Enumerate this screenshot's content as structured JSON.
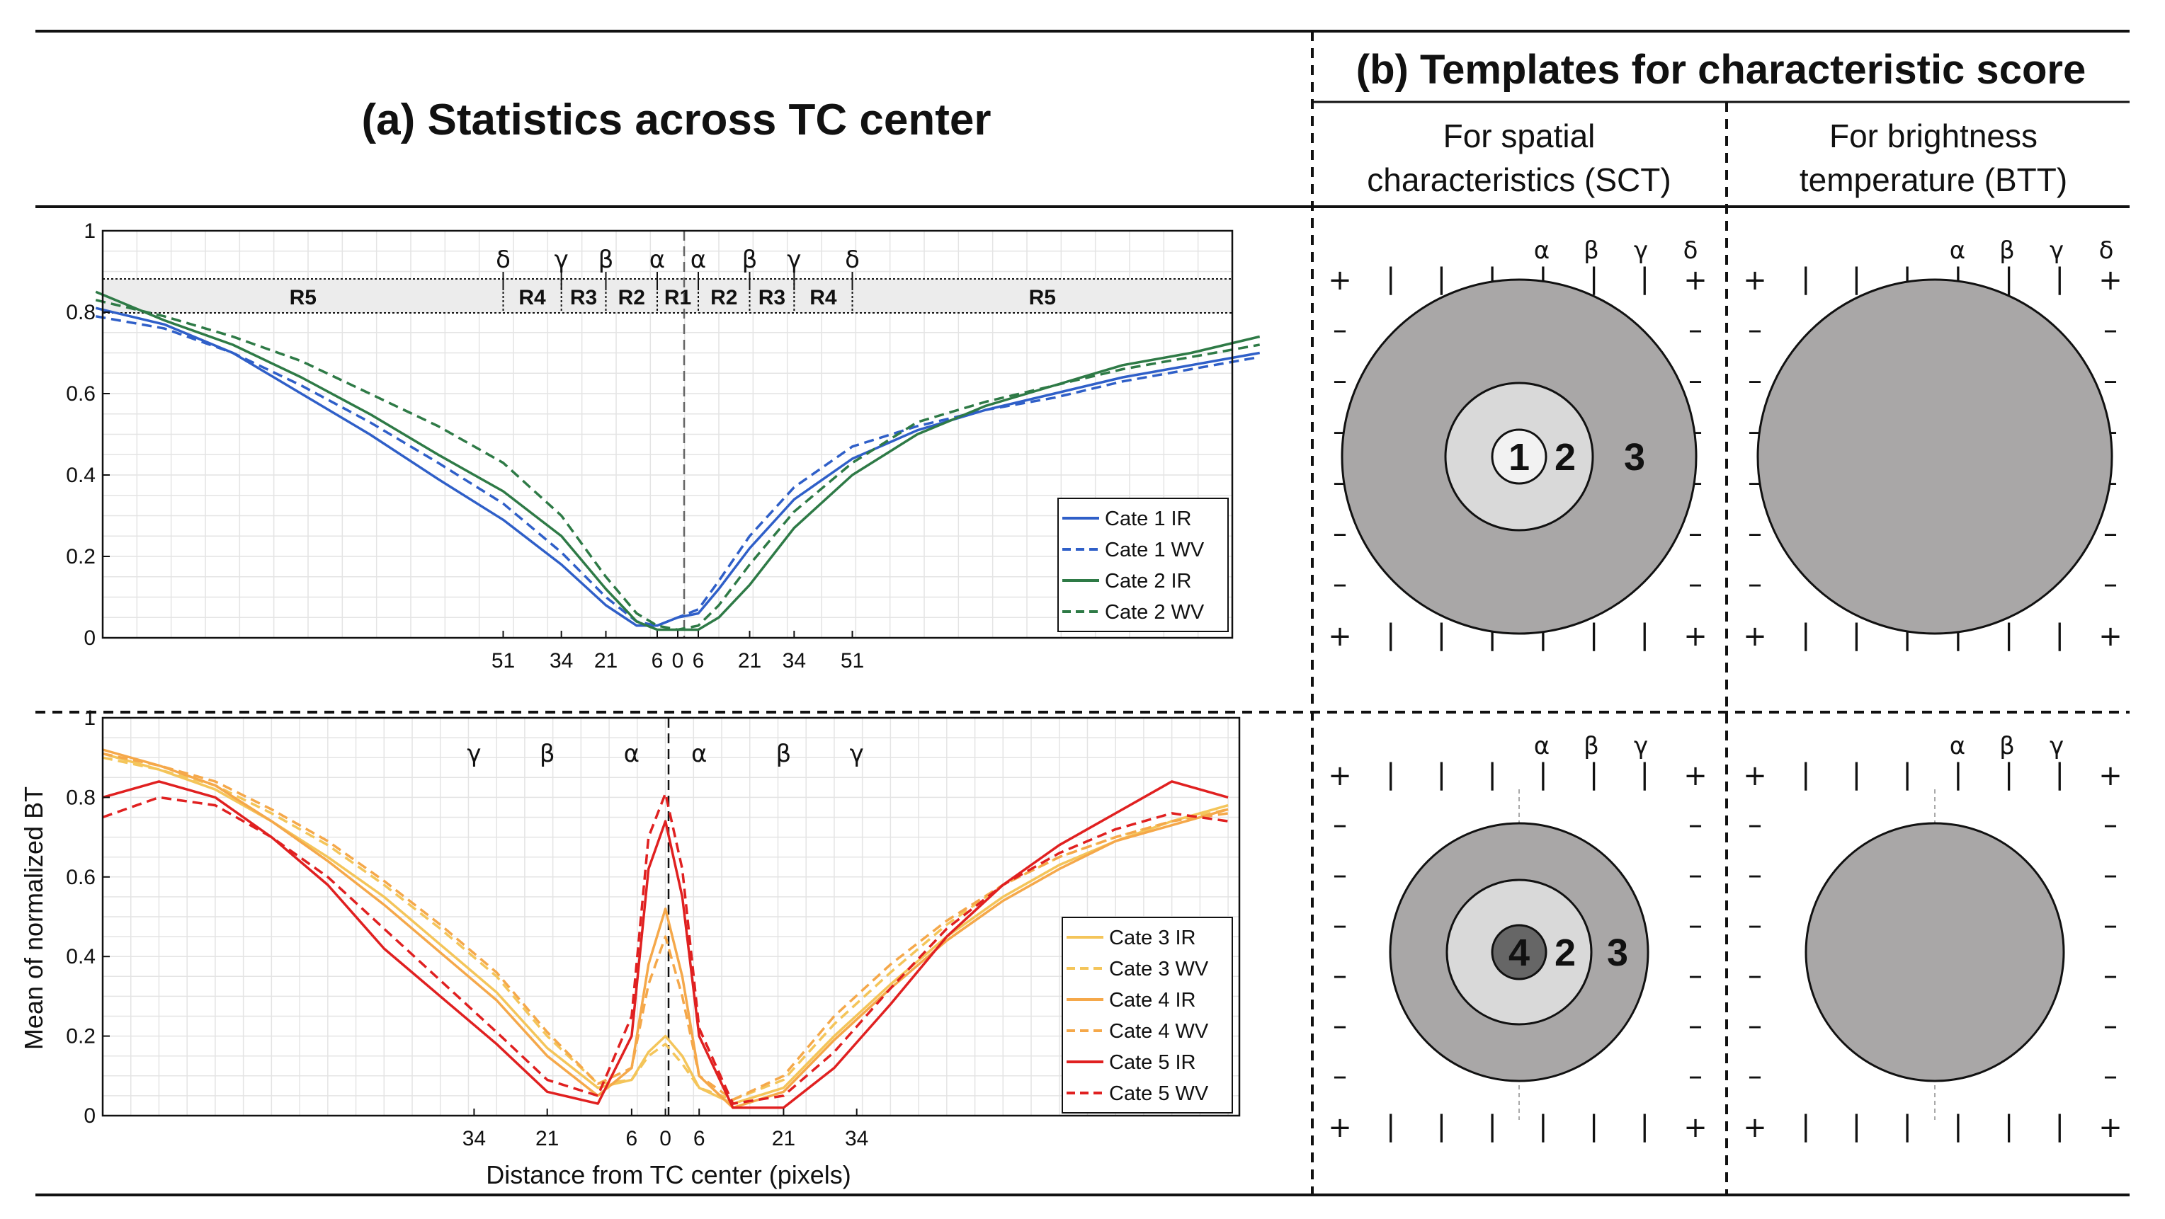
{
  "panel_a": {
    "title": "(a) Statistics across TC center"
  },
  "panel_b": {
    "title": "(b) Templates for characteristic score",
    "col1": {
      "line1": "For spatial",
      "line2": "characteristics (SCT)"
    },
    "col2": {
      "line1": "For brightness",
      "line2": "temperature (BTT)"
    }
  },
  "template_labels": {
    "top_sct": [
      "1",
      "2",
      "3"
    ],
    "bottom_sct": [
      "4",
      "2",
      "3"
    ],
    "greek_top": [
      "α",
      "β",
      "γ",
      "δ"
    ],
    "greek_bottom": [
      "α",
      "β",
      "γ"
    ],
    "plus": "+",
    "minus": "–",
    "bar": "|"
  },
  "chart_data": [
    {
      "type": "line",
      "title": "",
      "xlabel": "",
      "ylabel": "",
      "ylim": [
        0,
        1
      ],
      "yticks": [
        "0",
        "0.2",
        "0.4",
        "0.6",
        "0.8",
        "1"
      ],
      "xticks": [
        "51",
        "34",
        "21",
        "6",
        "0",
        "6",
        "21",
        "34",
        "51"
      ],
      "region_labels": [
        "R5",
        "R4",
        "R3",
        "R2",
        "R1",
        "R2",
        "R3",
        "R4",
        "R5"
      ],
      "greek_labels": [
        "δ",
        "γ",
        "β",
        "α",
        "α",
        "β",
        "γ",
        "δ"
      ],
      "legend_position": "bottom-right",
      "x": [
        -170,
        -150,
        -130,
        -110,
        -90,
        -70,
        -51,
        -34,
        -21,
        -12,
        -6,
        0,
        6,
        12,
        21,
        34,
        51,
        70,
        90,
        110,
        130,
        150,
        170
      ],
      "series": [
        {
          "name": "Cate 1 IR",
          "color": "#2f5fc8",
          "dash": false,
          "values": [
            0.81,
            0.77,
            0.7,
            0.6,
            0.5,
            0.39,
            0.29,
            0.18,
            0.08,
            0.03,
            0.03,
            0.05,
            0.06,
            0.12,
            0.22,
            0.34,
            0.44,
            0.51,
            0.56,
            0.6,
            0.64,
            0.67,
            0.7
          ]
        },
        {
          "name": "Cate 1 WV",
          "color": "#2f5fc8",
          "dash": true,
          "values": [
            0.79,
            0.76,
            0.7,
            0.62,
            0.53,
            0.43,
            0.33,
            0.21,
            0.1,
            0.04,
            0.03,
            0.05,
            0.07,
            0.14,
            0.25,
            0.37,
            0.47,
            0.52,
            0.56,
            0.59,
            0.63,
            0.66,
            0.69
          ]
        },
        {
          "name": "Cate 2 IR",
          "color": "#2e7a46",
          "dash": false,
          "values": [
            0.85,
            0.78,
            0.72,
            0.64,
            0.55,
            0.45,
            0.36,
            0.25,
            0.12,
            0.04,
            0.02,
            0.02,
            0.02,
            0.05,
            0.13,
            0.27,
            0.4,
            0.5,
            0.57,
            0.62,
            0.67,
            0.7,
            0.74
          ]
        },
        {
          "name": "Cate 2 WV",
          "color": "#2e7a46",
          "dash": true,
          "values": [
            0.83,
            0.79,
            0.74,
            0.68,
            0.6,
            0.52,
            0.43,
            0.3,
            0.15,
            0.06,
            0.03,
            0.02,
            0.03,
            0.08,
            0.18,
            0.31,
            0.43,
            0.53,
            0.58,
            0.62,
            0.66,
            0.69,
            0.72
          ]
        }
      ]
    },
    {
      "type": "line",
      "title": "",
      "xlabel": "Distance from TC center (pixels)",
      "ylabel": "Mean of normalized BT",
      "ylim": [
        0,
        1
      ],
      "yticks": [
        "0",
        "0.2",
        "0.4",
        "0.6",
        "0.8",
        "1"
      ],
      "xticks": [
        "34",
        "21",
        "6",
        "0",
        "6",
        "21",
        "34"
      ],
      "greek_labels": [
        "γ",
        "β",
        "α",
        "α",
        "β",
        "γ"
      ],
      "legend_position": "bottom-right",
      "x": [
        -100,
        -90,
        -80,
        -70,
        -60,
        -50,
        -40,
        -30,
        -21,
        -12,
        -6,
        -3,
        0,
        3,
        6,
        12,
        21,
        30,
        40,
        50,
        60,
        70,
        80,
        90,
        100
      ],
      "series": [
        {
          "name": "Cate 3 IR",
          "color": "#f4c55a",
          "dash": false,
          "values": [
            0.91,
            0.87,
            0.82,
            0.74,
            0.65,
            0.55,
            0.43,
            0.31,
            0.17,
            0.07,
            0.09,
            0.16,
            0.2,
            0.15,
            0.07,
            0.03,
            0.07,
            0.2,
            0.33,
            0.45,
            0.55,
            0.63,
            0.69,
            0.74,
            0.78
          ]
        },
        {
          "name": "Cate 3 WV",
          "color": "#f4c55a",
          "dash": true,
          "values": [
            0.9,
            0.87,
            0.83,
            0.76,
            0.68,
            0.58,
            0.47,
            0.35,
            0.2,
            0.08,
            0.09,
            0.15,
            0.18,
            0.13,
            0.07,
            0.04,
            0.09,
            0.23,
            0.36,
            0.48,
            0.58,
            0.65,
            0.7,
            0.74,
            0.77
          ]
        },
        {
          "name": "Cate 4 IR",
          "color": "#f5a84a",
          "dash": false,
          "values": [
            0.92,
            0.88,
            0.83,
            0.74,
            0.64,
            0.53,
            0.41,
            0.29,
            0.15,
            0.05,
            0.12,
            0.38,
            0.52,
            0.35,
            0.1,
            0.02,
            0.06,
            0.19,
            0.32,
            0.44,
            0.54,
            0.62,
            0.69,
            0.73,
            0.77
          ]
        },
        {
          "name": "Cate 4 WV",
          "color": "#f5a84a",
          "dash": true,
          "values": [
            0.91,
            0.88,
            0.84,
            0.77,
            0.69,
            0.59,
            0.48,
            0.36,
            0.21,
            0.08,
            0.12,
            0.33,
            0.45,
            0.3,
            0.1,
            0.04,
            0.1,
            0.25,
            0.38,
            0.49,
            0.58,
            0.65,
            0.7,
            0.74,
            0.76
          ]
        },
        {
          "name": "Cate 5 IR",
          "color": "#e02020",
          "dash": false,
          "values": [
            0.8,
            0.84,
            0.8,
            0.7,
            0.58,
            0.42,
            0.3,
            0.18,
            0.06,
            0.03,
            0.2,
            0.62,
            0.74,
            0.55,
            0.2,
            0.02,
            0.02,
            0.12,
            0.28,
            0.45,
            0.58,
            0.68,
            0.76,
            0.84,
            0.8
          ]
        },
        {
          "name": "Cate 5 WV",
          "color": "#e02020",
          "dash": true,
          "values": [
            0.75,
            0.8,
            0.78,
            0.7,
            0.6,
            0.47,
            0.34,
            0.21,
            0.09,
            0.05,
            0.25,
            0.7,
            0.81,
            0.62,
            0.22,
            0.03,
            0.05,
            0.16,
            0.32,
            0.47,
            0.58,
            0.66,
            0.72,
            0.76,
            0.74
          ]
        }
      ]
    }
  ]
}
